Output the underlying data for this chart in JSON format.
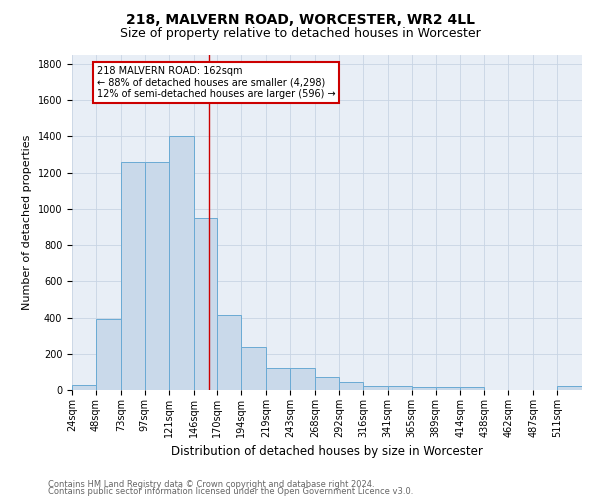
{
  "title1": "218, MALVERN ROAD, WORCESTER, WR2 4LL",
  "title2": "Size of property relative to detached houses in Worcester",
  "xlabel": "Distribution of detached houses by size in Worcester",
  "ylabel": "Number of detached properties",
  "footnote1": "Contains HM Land Registry data © Crown copyright and database right 2024.",
  "footnote2": "Contains public sector information licensed under the Open Government Licence v3.0.",
  "bar_labels": [
    "24sqm",
    "48sqm",
    "73sqm",
    "97sqm",
    "121sqm",
    "146sqm",
    "170sqm",
    "194sqm",
    "219sqm",
    "243sqm",
    "268sqm",
    "292sqm",
    "316sqm",
    "341sqm",
    "365sqm",
    "389sqm",
    "414sqm",
    "438sqm",
    "462sqm",
    "487sqm",
    "511sqm"
  ],
  "bar_values": [
    30,
    390,
    1260,
    1260,
    1400,
    950,
    415,
    235,
    120,
    120,
    70,
    45,
    20,
    20,
    15,
    15,
    15,
    0,
    0,
    0,
    20
  ],
  "bar_color": "#c9d9ea",
  "bar_edge_color": "#6aaad4",
  "vline_x": 162,
  "vline_color": "#cc0000",
  "ann_line1": "218 MALVERN ROAD: 162sqm",
  "ann_line2": "← 88% of detached houses are smaller (4,298)",
  "ann_line3": "12% of semi-detached houses are larger (596) →",
  "ann_box_fc": "white",
  "ann_box_ec": "#cc0000",
  "ylim": [
    0,
    1850
  ],
  "yticks": [
    0,
    200,
    400,
    600,
    800,
    1000,
    1200,
    1400,
    1600,
    1800
  ],
  "grid_color": "#c8d4e4",
  "bg_color": "#e8eef6",
  "title1_fontsize": 10,
  "title2_fontsize": 9,
  "ylabel_fontsize": 8,
  "xlabel_fontsize": 8.5,
  "tick_fontsize": 7,
  "footnote_fontsize": 6,
  "footnote_color": "#666666"
}
